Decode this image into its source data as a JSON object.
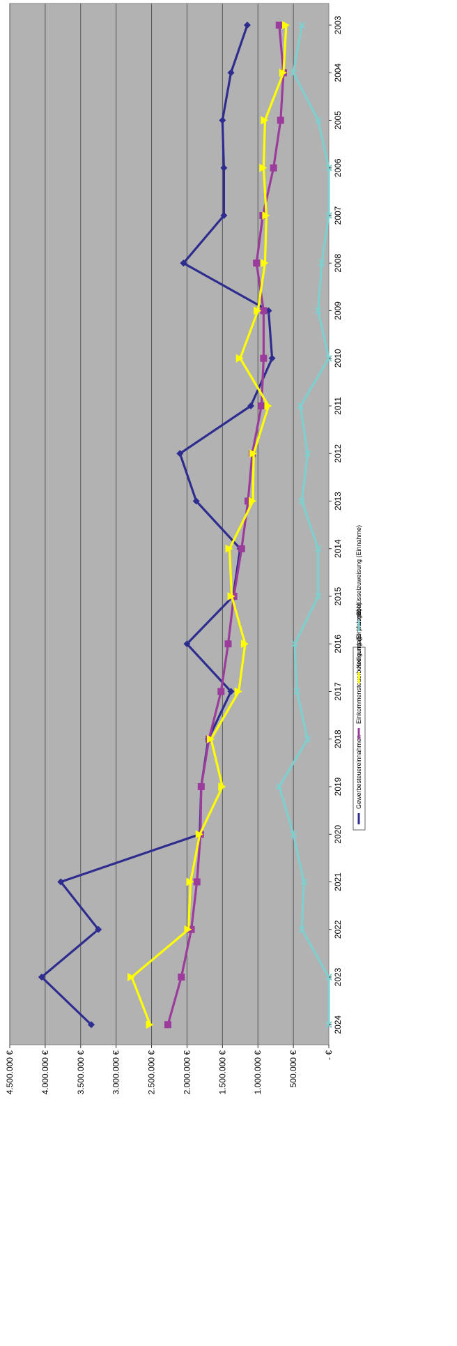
{
  "chart_data": {
    "type": "line",
    "orientation": "rotated-90-clockwise",
    "title": "",
    "xlabel": "",
    "ylabel": "",
    "categories": [
      "2003",
      "2004",
      "2005",
      "2006",
      "2007",
      "2008",
      "2009",
      "2010",
      "2011",
      "2012",
      "2013",
      "2014",
      "2015",
      "2016",
      "2017",
      "2018",
      "2019",
      "2020",
      "2021",
      "2022",
      "2023",
      "2024"
    ],
    "ylim": [
      0,
      4500000
    ],
    "y_ticks": [
      0,
      500000,
      1000000,
      1500000,
      2000000,
      2500000,
      3000000,
      3500000,
      4000000,
      4500000
    ],
    "y_tick_labels": [
      "-   €",
      "500.000 €",
      "1.000.000 €",
      "1.500.000 €",
      "2.000.000 €",
      "2.500.000 €",
      "3.000.000 €",
      "3.500.000 €",
      "4.000.000 €",
      "4.500.000 €"
    ],
    "grid": true,
    "legend_position": "bottom",
    "series": [
      {
        "name": "Gewerbesteuereinnahmen",
        "color": "#2e2d8f",
        "marker": "diamond",
        "values": [
          1150000,
          1380000,
          1500000,
          1480000,
          1480000,
          2050000,
          850000,
          800000,
          1100000,
          2100000,
          1870000,
          1250000,
          1350000,
          2000000,
          1380000,
          1700000,
          1800000,
          1820000,
          3780000,
          3250000,
          4050000,
          3350000
        ]
      },
      {
        "name": "Einkommensteuerbeteiligung (Einnahme)",
        "color": "#9b3b9b",
        "marker": "square",
        "values": [
          700000,
          640000,
          680000,
          780000,
          930000,
          1020000,
          920000,
          920000,
          950000,
          1080000,
          1140000,
          1230000,
          1340000,
          1420000,
          1520000,
          1690000,
          1800000,
          1810000,
          1860000,
          1940000,
          2080000,
          2270000
        ]
      },
      {
        "name": "Kreisumlage (Ausgabe)",
        "color": "#ffff00",
        "marker": "triangle",
        "values": [
          600000,
          640000,
          900000,
          920000,
          880000,
          900000,
          1000000,
          1250000,
          850000,
          1060000,
          1070000,
          1400000,
          1370000,
          1180000,
          1270000,
          1660000,
          1500000,
          1820000,
          1950000,
          1980000,
          2780000,
          2520000
        ]
      },
      {
        "name": "Schlüsselzuweisung (Einnahme)",
        "color": "#7fcfcf",
        "marker": "x",
        "values": [
          380000,
          500000,
          150000,
          0,
          0,
          100000,
          150000,
          0,
          400000,
          300000,
          380000,
          150000,
          150000,
          480000,
          450000,
          300000,
          700000,
          500000,
          350000,
          380000,
          0,
          0
        ]
      }
    ]
  }
}
